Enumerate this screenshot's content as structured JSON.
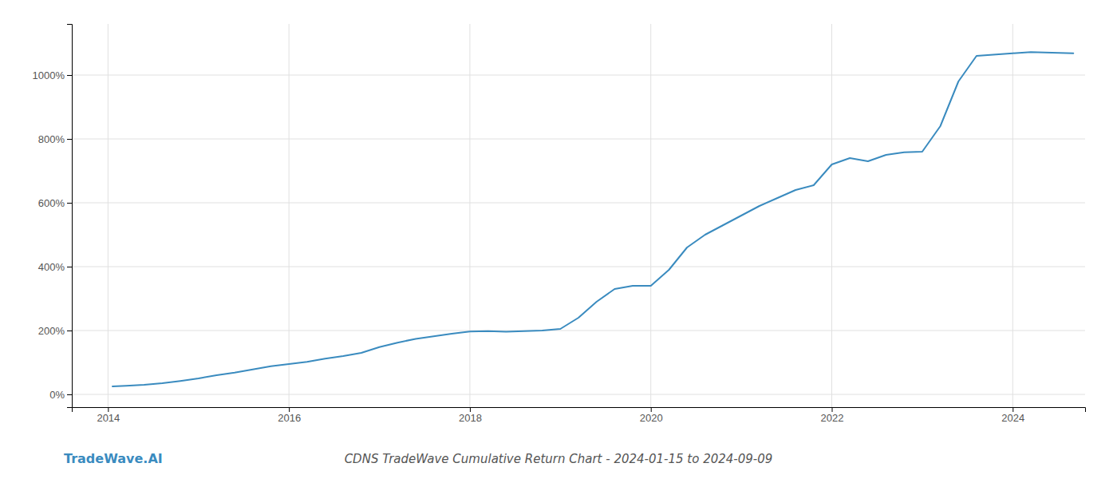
{
  "chart_data": {
    "type": "line",
    "title": "CDNS TradeWave Cumulative Return Chart - 2024-01-15 to 2024-09-09",
    "annotations": [
      "TradeWave.AI"
    ],
    "color": "#3a8bbf",
    "x": [
      2014.05,
      2014.2,
      2014.4,
      2014.6,
      2014.8,
      2015.0,
      2015.2,
      2015.4,
      2015.6,
      2015.8,
      2016.0,
      2016.2,
      2016.4,
      2016.6,
      2016.8,
      2017.0,
      2017.2,
      2017.4,
      2017.6,
      2017.8,
      2018.0,
      2018.2,
      2018.4,
      2018.6,
      2018.8,
      2019.0,
      2019.2,
      2019.4,
      2019.6,
      2019.8,
      2020.0,
      2020.2,
      2020.4,
      2020.6,
      2020.8,
      2021.0,
      2021.2,
      2021.4,
      2021.6,
      2021.8,
      2022.0,
      2022.2,
      2022.4,
      2022.6,
      2022.8,
      2023.0,
      2023.2,
      2023.4,
      2023.6,
      2024.0,
      2024.2,
      2024.67
    ],
    "values": [
      25,
      27,
      30,
      35,
      42,
      50,
      60,
      68,
      78,
      88,
      95,
      102,
      112,
      120,
      130,
      148,
      162,
      174,
      182,
      190,
      197,
      198,
      196,
      198,
      200,
      205,
      240,
      290,
      330,
      340,
      340,
      390,
      460,
      500,
      530,
      560,
      590,
      615,
      640,
      655,
      720,
      740,
      730,
      750,
      758,
      760,
      840,
      980,
      1060,
      1068,
      1072,
      1068
    ],
    "xlim": [
      2013.6,
      2024.8
    ],
    "ylim": [
      -40,
      1160
    ],
    "xticks": [
      2014,
      2016,
      2018,
      2020,
      2022,
      2024
    ],
    "yticks": [
      {
        "value": 0,
        "label": "0%"
      },
      {
        "value": 200,
        "label": "200%"
      },
      {
        "value": 400,
        "label": "400%"
      },
      {
        "value": 600,
        "label": "600%"
      },
      {
        "value": 800,
        "label": "800%"
      },
      {
        "value": 1000,
        "label": "1000%"
      }
    ],
    "grid": true
  }
}
